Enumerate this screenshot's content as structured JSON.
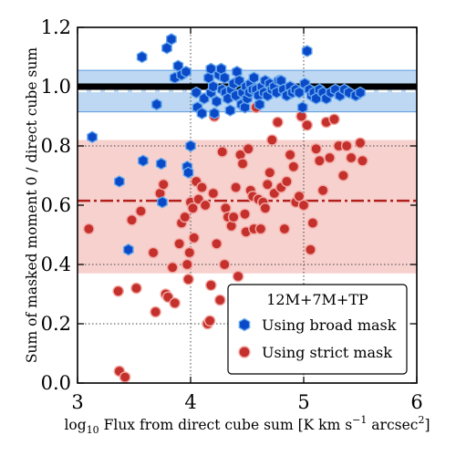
{
  "chart_data": {
    "type": "scatter",
    "xlabel": "log10 Flux from direct cube sum [K km s−1 arcsec2]",
    "xlabel_parts": {
      "pre": "log",
      "sub": "10",
      "mid": " Flux from direct cube sum [K km s",
      "sup1": "−1",
      "post": " arcsec",
      "sup2": "2",
      "end": "]"
    },
    "ylabel": "Sum of masked moment 0 / direct cube sum",
    "xlim": [
      3,
      6
    ],
    "ylim": [
      0.0,
      1.2
    ],
    "xticks": [
      "3",
      "4",
      "5",
      "6"
    ],
    "yticks": [
      "0.0",
      "0.2",
      "0.4",
      "0.6",
      "0.8",
      "1.0",
      "1.2"
    ],
    "dotted_grid_x": [
      4,
      5
    ],
    "dotted_grid_y": [
      0.2,
      0.4,
      0.8
    ],
    "reference_line": {
      "y": 1.0,
      "color": "#000000"
    },
    "broad_band": {
      "median": 0.985,
      "low": 0.915,
      "high": 1.055,
      "color": "#1f6fd1",
      "fill": "#b7d4f2"
    },
    "strict_band": {
      "median": 0.615,
      "low": 0.37,
      "high": 0.82,
      "color": "#b2201c",
      "fill": "#f6c9c6"
    },
    "legend": {
      "title": "12M+7M+TP",
      "position": "lower-right",
      "entries": [
        "Using broad mask",
        "Using strict mask"
      ]
    },
    "series": [
      {
        "name": "Using broad mask",
        "marker": "hexagon",
        "color": "#0a49c7",
        "edge": "#66a8ee",
        "points": [
          [
            3.13,
            0.83
          ],
          [
            3.37,
            0.68
          ],
          [
            3.45,
            0.45
          ],
          [
            3.57,
            1.1
          ],
          [
            3.58,
            0.75
          ],
          [
            3.7,
            0.94
          ],
          [
            3.74,
            0.74
          ],
          [
            3.75,
            0.61
          ],
          [
            3.79,
            1.13
          ],
          [
            3.83,
            1.16
          ],
          [
            3.86,
            1.03
          ],
          [
            3.89,
            1.07
          ],
          [
            3.92,
            1.04
          ],
          [
            3.96,
            1.05
          ],
          [
            3.97,
            0.73
          ],
          [
            3.98,
            0.71
          ],
          [
            4.0,
            0.8
          ],
          [
            4.05,
            0.98
          ],
          [
            4.06,
            0.93
          ],
          [
            4.1,
            0.91
          ],
          [
            4.12,
            0.96
          ],
          [
            4.16,
            1.03
          ],
          [
            4.18,
            1.06
          ],
          [
            4.18,
            0.98
          ],
          [
            4.2,
            1.0
          ],
          [
            4.21,
            0.91
          ],
          [
            4.23,
            0.95
          ],
          [
            4.25,
            1.04
          ],
          [
            4.27,
            1.06
          ],
          [
            4.28,
            0.99
          ],
          [
            4.3,
            1.03
          ],
          [
            4.31,
            0.98
          ],
          [
            4.33,
            0.96
          ],
          [
            4.35,
            0.92
          ],
          [
            4.36,
            0.99
          ],
          [
            4.38,
            1.01
          ],
          [
            4.4,
            0.97
          ],
          [
            4.41,
            1.05
          ],
          [
            4.43,
            1.02
          ],
          [
            4.45,
            0.94
          ],
          [
            4.46,
            0.98
          ],
          [
            4.48,
            0.93
          ],
          [
            4.49,
            1.0
          ],
          [
            4.5,
            0.96
          ],
          [
            4.52,
            0.98
          ],
          [
            4.53,
            1.01
          ],
          [
            4.55,
            0.99
          ],
          [
            4.56,
            1.03
          ],
          [
            4.58,
            0.99
          ],
          [
            4.6,
            0.97
          ],
          [
            4.61,
            0.94
          ],
          [
            4.63,
            1.0
          ],
          [
            4.65,
            0.98
          ],
          [
            4.66,
            1.02
          ],
          [
            4.68,
            0.97
          ],
          [
            4.7,
            1.01
          ],
          [
            4.72,
            0.99
          ],
          [
            4.74,
            1.0
          ],
          [
            4.76,
            0.98
          ],
          [
            4.78,
            1.02
          ],
          [
            4.8,
            1.02
          ],
          [
            4.82,
            0.99
          ],
          [
            4.85,
            0.97
          ],
          [
            4.88,
            1.0
          ],
          [
            4.9,
            0.98
          ],
          [
            4.93,
            0.99
          ],
          [
            4.96,
            0.98
          ],
          [
            4.99,
            0.93
          ],
          [
            5.01,
            1.01
          ],
          [
            5.03,
            1.12
          ],
          [
            5.05,
            0.99
          ],
          [
            5.07,
            0.97
          ],
          [
            5.09,
            0.98
          ],
          [
            5.11,
            0.96
          ],
          [
            5.14,
            0.99
          ],
          [
            5.17,
            0.98
          ],
          [
            5.2,
            0.96
          ],
          [
            5.24,
            0.98
          ],
          [
            5.28,
            0.99
          ],
          [
            5.32,
            0.97
          ],
          [
            5.36,
            0.99
          ],
          [
            5.4,
            0.98
          ],
          [
            5.46,
            0.97
          ],
          [
            5.5,
            0.98
          ]
        ]
      },
      {
        "name": "Using strict mask",
        "marker": "circle",
        "color": "#c4302b",
        "edge": "#f3a9a5",
        "points": [
          [
            3.1,
            0.52
          ],
          [
            3.36,
            0.31
          ],
          [
            3.37,
            0.04
          ],
          [
            3.42,
            0.02
          ],
          [
            3.48,
            0.55
          ],
          [
            3.52,
            0.32
          ],
          [
            3.56,
            0.58
          ],
          [
            3.67,
            0.44
          ],
          [
            3.69,
            0.24
          ],
          [
            3.73,
            0.64
          ],
          [
            3.76,
            0.67
          ],
          [
            3.78,
            0.3
          ],
          [
            3.8,
            0.29
          ],
          [
            3.84,
            0.39
          ],
          [
            3.86,
            0.27
          ],
          [
            3.9,
            0.47
          ],
          [
            3.92,
            0.54
          ],
          [
            3.95,
            0.56
          ],
          [
            3.97,
            0.4
          ],
          [
            3.98,
            0.35
          ],
          [
            3.99,
            0.44
          ],
          [
            4.0,
            0.61
          ],
          [
            4.02,
            0.59
          ],
          [
            4.03,
            0.49
          ],
          [
            4.05,
            0.68
          ],
          [
            4.07,
            0.62
          ],
          [
            4.1,
            0.66
          ],
          [
            4.13,
            0.6
          ],
          [
            4.15,
            0.2
          ],
          [
            4.17,
            0.21
          ],
          [
            4.18,
            0.33
          ],
          [
            4.2,
            0.64
          ],
          [
            4.21,
            0.9
          ],
          [
            4.23,
            0.47
          ],
          [
            4.26,
            0.28
          ],
          [
            4.28,
            0.78
          ],
          [
            4.3,
            0.4
          ],
          [
            4.31,
            0.59
          ],
          [
            4.33,
            0.56
          ],
          [
            4.36,
            0.53
          ],
          [
            4.38,
            0.56
          ],
          [
            4.4,
            0.66
          ],
          [
            4.42,
            0.36
          ],
          [
            4.44,
            0.77
          ],
          [
            4.46,
            0.74
          ],
          [
            4.48,
            0.57
          ],
          [
            4.49,
            0.51
          ],
          [
            4.51,
            0.79
          ],
          [
            4.53,
            0.65
          ],
          [
            4.55,
            0.63
          ],
          [
            4.56,
            0.52
          ],
          [
            4.58,
            0.93
          ],
          [
            4.6,
            0.62
          ],
          [
            4.62,
            0.52
          ],
          [
            4.64,
            0.61
          ],
          [
            4.66,
            0.59
          ],
          [
            4.68,
            0.67
          ],
          [
            4.7,
            0.71
          ],
          [
            4.72,
            0.82
          ],
          [
            4.74,
            0.64
          ],
          [
            4.77,
            0.88
          ],
          [
            4.8,
            0.66
          ],
          [
            4.83,
            0.52
          ],
          [
            4.85,
            0.68
          ],
          [
            4.88,
            0.77
          ],
          [
            4.91,
            0.73
          ],
          [
            4.93,
            0.61
          ],
          [
            4.96,
            0.63
          ],
          [
            4.98,
            0.9
          ],
          [
            5.0,
            0.6
          ],
          [
            5.03,
            0.87
          ],
          [
            5.06,
            0.45
          ],
          [
            5.08,
            0.54
          ],
          [
            5.11,
            0.79
          ],
          [
            5.14,
            0.75
          ],
          [
            5.17,
            0.65
          ],
          [
            5.2,
            0.88
          ],
          [
            5.23,
            0.76
          ],
          [
            5.27,
            0.89
          ],
          [
            5.31,
            0.8
          ],
          [
            5.35,
            0.7
          ],
          [
            5.38,
            0.8
          ],
          [
            5.42,
            0.76
          ],
          [
            5.5,
            0.81
          ],
          [
            5.52,
            0.75
          ]
        ]
      }
    ]
  }
}
